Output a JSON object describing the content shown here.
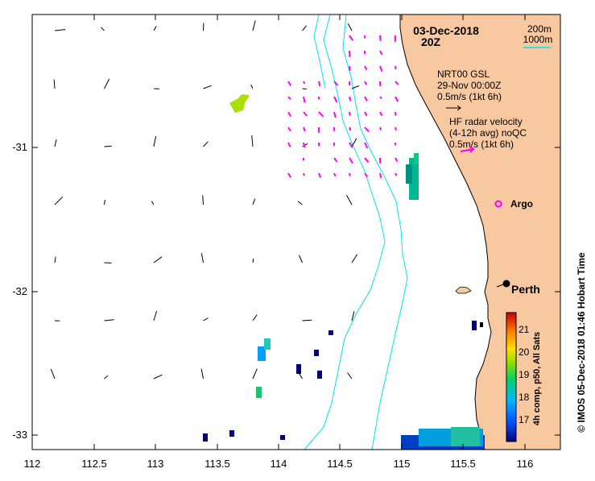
{
  "map": {
    "date": "03-Dec-2018",
    "hour": "20Z",
    "depth_legend": [
      "200m",
      "1000m"
    ],
    "model_legend": {
      "lines": [
        "NRT00 GSL",
        "29-Nov 00:00Z",
        "0.5m/s (1kt 6h)"
      ],
      "color": "#000000"
    },
    "radar_legend": {
      "lines": [
        "HF radar velocity",
        "(4-12h avg) noQC",
        "0.5m/s (1kt 6h)"
      ],
      "color": "#ff00ff"
    },
    "argo_label": "Argo",
    "city_label": "Perth",
    "x_ticks": [
      "112",
      "112.5",
      "113",
      "113.5",
      "114",
      "114.5",
      "115",
      "115.5",
      "116"
    ],
    "y_ticks": [
      "-31",
      "-32",
      "-33"
    ],
    "colorbar": {
      "title": "4h comp, p50, All Sats",
      "ticks": [
        "21",
        "20",
        "19",
        "18",
        "17"
      ]
    },
    "credit": "© IMOS 05-Dec-2018 01:46 Hobart Time",
    "colors": {
      "land": "#f8c8a0",
      "isobath": "#00e5ee",
      "radar": "#ff00ff",
      "coast": "#000000"
    }
  }
}
